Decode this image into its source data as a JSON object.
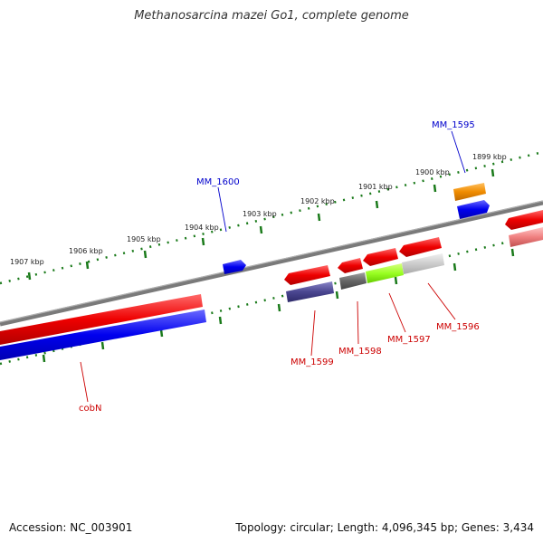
{
  "title": "Methanosarcina mazei Go1, complete genome",
  "footer": {
    "accession": "Accession: NC_003901",
    "summary": "Topology: circular; Length: 4,096,345 bp; Genes: 3,434"
  },
  "colors": {
    "backbone": "#7a7a7a",
    "ticks": "#1a7a1a",
    "forward_label": "#0000cc",
    "reverse_label": "#cc0000"
  },
  "ticks": [
    {
      "label": "1899 kbp"
    },
    {
      "label": "1900 kbp"
    },
    {
      "label": "1901 kbp"
    },
    {
      "label": "1902 kbp"
    },
    {
      "label": "1903 kbp"
    },
    {
      "label": "1904 kbp"
    },
    {
      "label": "1905 kbp"
    },
    {
      "label": "1906 kbp"
    },
    {
      "label": "1907 kbp"
    }
  ],
  "gene_labels": [
    {
      "name": "MM_1595",
      "strand": "forward"
    },
    {
      "name": "MM_1600",
      "strand": "forward"
    },
    {
      "name": "MM_1599",
      "strand": "reverse"
    },
    {
      "name": "MM_1598",
      "strand": "reverse"
    },
    {
      "name": "MM_1597",
      "strand": "reverse"
    },
    {
      "name": "MM_1596",
      "strand": "reverse"
    },
    {
      "name": "cobN",
      "strand": "reverse"
    }
  ]
}
